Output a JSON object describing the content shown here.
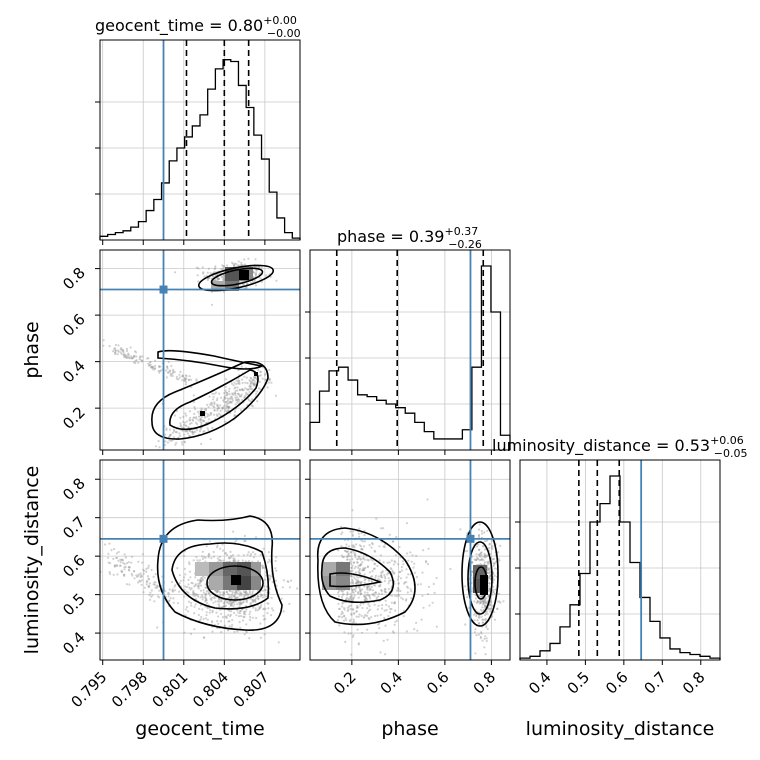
{
  "chart_data": {
    "type": "corner",
    "parameters": [
      "geocent_time",
      "phase",
      "luminosity_distance"
    ],
    "titles": [
      {
        "param": "geocent_time",
        "prefix": "geocent_time = 0.80",
        "sup": "+0.00",
        "sub": "−0.00"
      },
      {
        "param": "phase",
        "prefix": "phase = 0.39",
        "sup": "+0.37",
        "sub": "−0.26"
      },
      {
        "param": "luminosity_distance",
        "prefix": "luminosity_distance = 0.53",
        "sup": "+0.06",
        "sub": "−0.05"
      }
    ],
    "axis_labels": {
      "x": [
        "geocent_time",
        "phase",
        "luminosity_distance"
      ],
      "y": [
        "phase",
        "luminosity_distance"
      ]
    },
    "ranges": {
      "geocent_time": [
        0.7948,
        0.8096
      ],
      "phase": [
        0.02,
        0.88
      ],
      "luminosity_distance": [
        0.33,
        0.85
      ]
    },
    "tick_labels": {
      "geocent_time": [
        "0.795",
        "0.798",
        "0.801",
        "0.804",
        "0.807"
      ],
      "phase": [
        "0.2",
        "0.4",
        "0.6",
        "0.8"
      ],
      "luminosity_distance_y": [
        "0.4",
        "0.5",
        "0.6",
        "0.7",
        "0.8"
      ],
      "luminosity_distance_x": [
        "0.4",
        "0.5",
        "0.6",
        "0.7",
        "0.8"
      ]
    },
    "ticks": {
      "geocent_time": [
        0.795,
        0.798,
        0.801,
        0.804,
        0.807
      ],
      "phase": [
        0.2,
        0.4,
        0.6,
        0.8
      ],
      "luminosity_distance": [
        0.4,
        0.5,
        0.6,
        0.7,
        0.8
      ]
    },
    "truths": {
      "geocent_time": 0.7995,
      "phase": 0.71,
      "luminosity_distance": 0.645
    },
    "quantiles": {
      "geocent_time": [
        0.8012,
        0.804,
        0.8058
      ],
      "phase": [
        0.135,
        0.395,
        0.765
      ],
      "luminosity_distance": [
        0.483,
        0.531,
        0.588
      ]
    },
    "histograms": {
      "geocent_time": [
        0.02,
        0.03,
        0.04,
        0.05,
        0.07,
        0.1,
        0.16,
        0.22,
        0.31,
        0.43,
        0.5,
        0.56,
        0.62,
        0.68,
        0.82,
        0.93,
        0.98,
        0.97,
        0.84,
        0.72,
        0.57,
        0.44,
        0.26,
        0.12,
        0.04,
        0.01
      ],
      "phase": [
        0.15,
        0.32,
        0.43,
        0.45,
        0.38,
        0.3,
        0.29,
        0.27,
        0.25,
        0.23,
        0.2,
        0.15,
        0.1,
        0.06,
        0.06,
        0.06,
        0.11,
        0.45,
        1.0,
        0.75,
        0.08
      ],
      "luminosity_distance": [
        0.01,
        0.02,
        0.05,
        0.09,
        0.18,
        0.3,
        0.47,
        0.75,
        0.85,
        1.0,
        0.75,
        0.53,
        0.34,
        0.21,
        0.12,
        0.06,
        0.04,
        0.03,
        0.02,
        0.01
      ]
    },
    "grid": true,
    "colors": {
      "truth": "#4682b4",
      "hist": "#000000",
      "points": "#9a9a9a",
      "density": "#000000",
      "grid": "#c8c8c8"
    }
  }
}
